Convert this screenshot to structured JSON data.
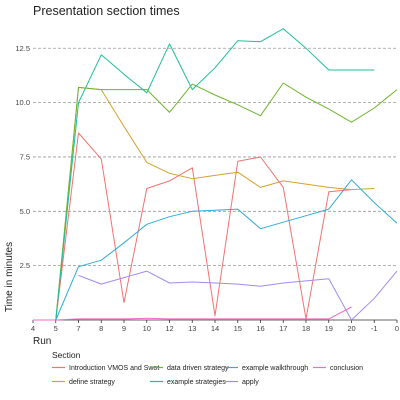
{
  "chart_data": {
    "type": "line",
    "title": "Presentation section times",
    "xlabel": "Run",
    "ylabel": "Time in minutes",
    "x_tick_labels": [
      "4",
      "5",
      "7",
      "8",
      "9",
      "10",
      "12",
      "13",
      "14",
      "15",
      "16",
      "17",
      "18",
      "19",
      "20",
      "-1",
      "0"
    ],
    "ylim": [
      0,
      13.8
    ],
    "y_ticks": [
      2.5,
      5.0,
      7.5,
      10.0,
      12.5
    ],
    "y_tick_labels": [
      "2.5",
      "5.0",
      "7.5",
      "10.0",
      "12.5"
    ],
    "grid": "horizontal-dashed",
    "legend": {
      "title": "Section",
      "position": "bottom"
    },
    "series": [
      {
        "name": "Introduction VMOS and Swot",
        "color": "#F0736F",
        "values": [
          0,
          0,
          8.6,
          7.4,
          0.8,
          6.05,
          6.4,
          7.0,
          0.2,
          7.3,
          7.5,
          6.1,
          0.05,
          5.9,
          6.0,
          null,
          null
        ]
      },
      {
        "name": "define strategy",
        "color": "#D4A229",
        "values": [
          0,
          0,
          10.7,
          10.6,
          8.9,
          7.25,
          6.75,
          6.5,
          6.65,
          6.8,
          6.1,
          6.4,
          6.25,
          6.1,
          6.0,
          6.05,
          null
        ]
      },
      {
        "name": "data driven strategy",
        "color": "#6FB52E",
        "values": [
          0,
          0,
          10.7,
          10.6,
          10.6,
          10.6,
          9.55,
          10.85,
          10.35,
          9.9,
          9.4,
          10.9,
          10.25,
          9.7,
          9.1,
          9.75,
          10.6
        ]
      },
      {
        "name": "example strategies",
        "color": "#1FBF99",
        "values": [
          0,
          0,
          10.0,
          12.2,
          11.3,
          10.45,
          12.7,
          10.6,
          11.6,
          12.85,
          12.8,
          13.4,
          12.5,
          11.5,
          11.5,
          11.5,
          null
        ]
      },
      {
        "name": "example walkthrough",
        "color": "#2EADD9",
        "values": [
          0,
          0,
          2.45,
          2.75,
          3.55,
          4.4,
          4.75,
          5.0,
          5.05,
          5.1,
          4.2,
          4.5,
          4.8,
          5.1,
          6.45,
          5.4,
          4.45
        ]
      },
      {
        "name": "apply",
        "color": "#A28BF0",
        "values": [
          null,
          null,
          2.05,
          1.65,
          1.95,
          2.25,
          1.7,
          1.75,
          1.7,
          1.65,
          1.55,
          1.7,
          1.8,
          1.9,
          0.0,
          1.0,
          2.25
        ]
      },
      {
        "name": "conclusion",
        "color": "#F26BC9",
        "values": [
          0,
          0,
          0.05,
          0.05,
          0.05,
          0.08,
          0.05,
          0.05,
          0.05,
          0.05,
          0.05,
          0.05,
          0.05,
          0.05,
          0.6,
          null,
          null
        ]
      }
    ]
  },
  "legend_rows": [
    [
      "Introduction VMOS and Swot",
      "data driven strategy",
      "example walkthrough",
      "conclusion"
    ],
    [
      "define strategy",
      "example strategies",
      "apply"
    ]
  ]
}
